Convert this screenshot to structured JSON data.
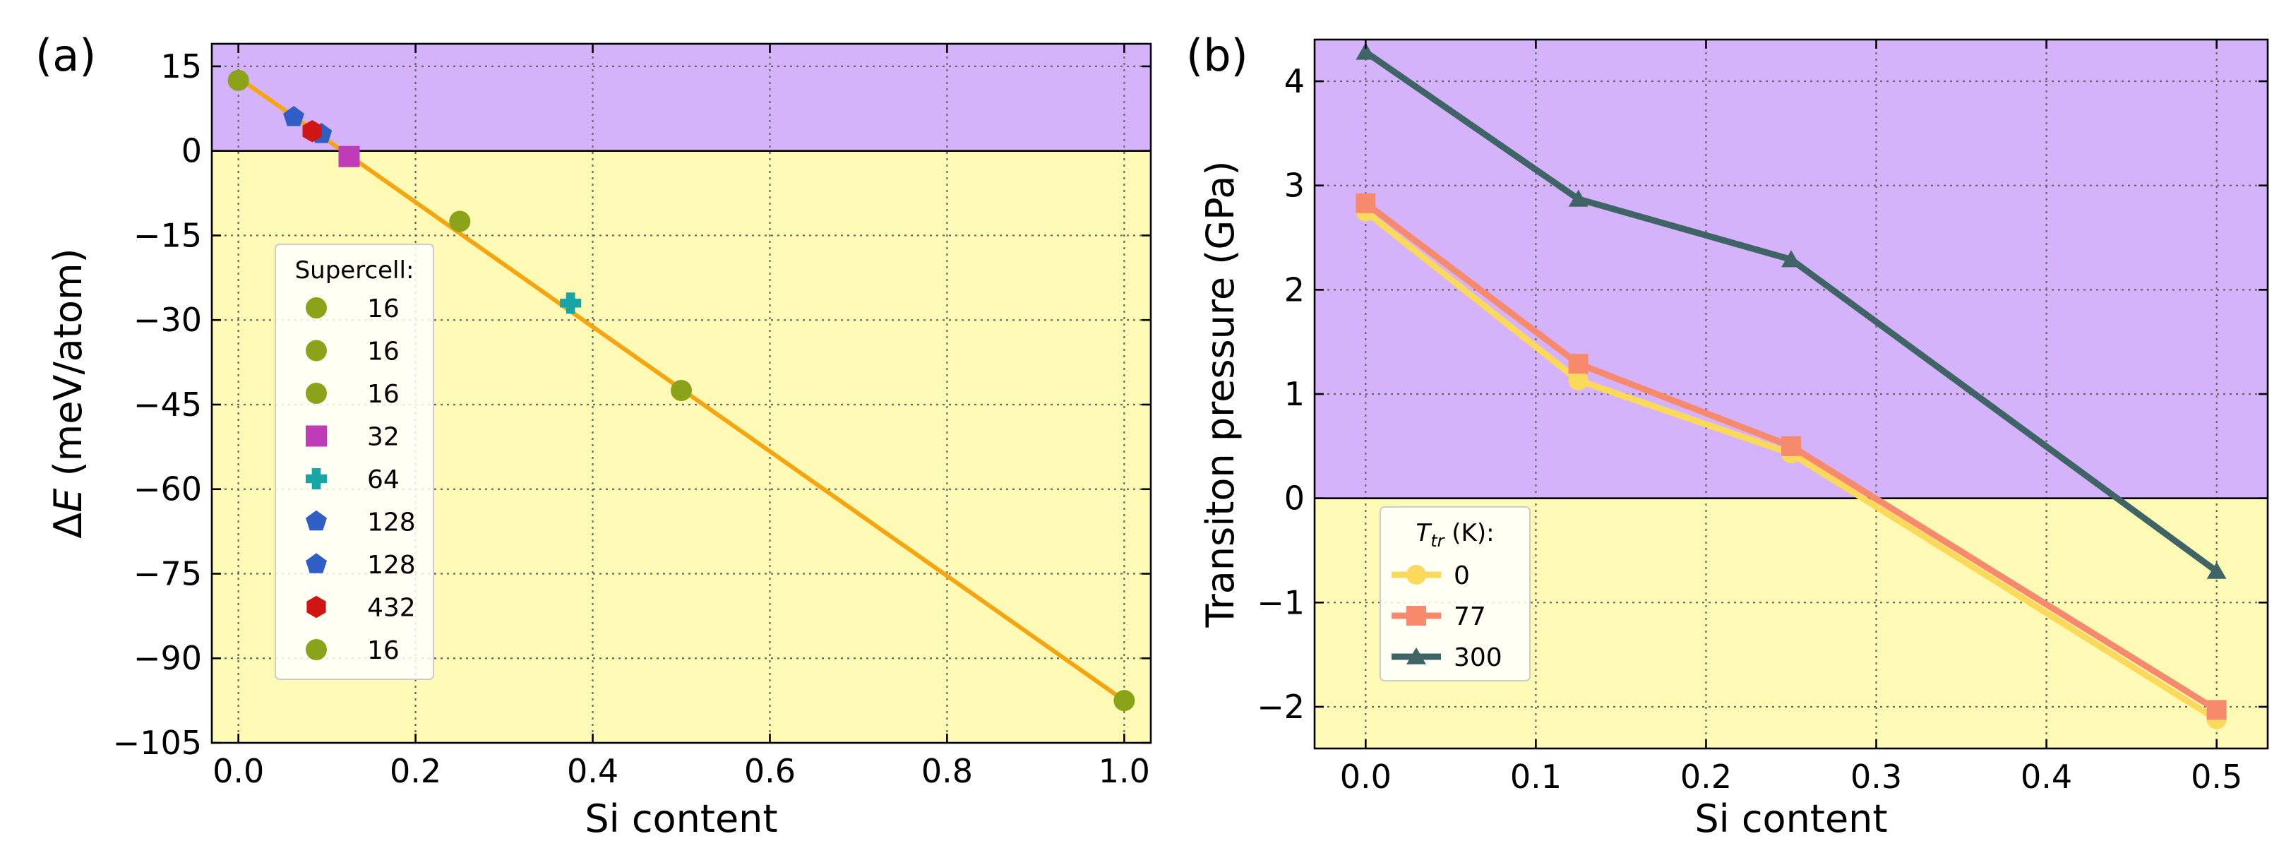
{
  "chart_data": [
    {
      "type": "scatter",
      "panel_label": "(a)",
      "xlabel": "Si content",
      "ylabel_parts": [
        "Δ",
        "E",
        " (meV/atom)"
      ],
      "xlim": [
        -0.03,
        1.03
      ],
      "ylim": [
        -105,
        19
      ],
      "xticks": [
        0.0,
        0.2,
        0.4,
        0.6,
        0.8,
        1.0
      ],
      "xtick_labels": [
        "0.0",
        "0.2",
        "0.4",
        "0.6",
        "0.8",
        "1.0"
      ],
      "yticks": [
        15,
        0,
        -15,
        -30,
        -45,
        -60,
        -75,
        -90,
        -105
      ],
      "ytick_labels": [
        "15",
        "0",
        "−15",
        "−30",
        "−45",
        "−60",
        "−75",
        "−90",
        "−105"
      ],
      "grid": true,
      "regions": [
        {
          "name": "positive",
          "y_range": [
            0,
            19
          ],
          "color": "#d5b3fb"
        },
        {
          "name": "negative",
          "y_range": [
            -105,
            0
          ],
          "color": "#fdfab5"
        }
      ],
      "fit_line": {
        "x": [
          0.0,
          1.0
        ],
        "y": [
          13.0,
          -97.5
        ],
        "color": "#f7a50f"
      },
      "legend": {
        "title": "Supercell:",
        "position": "left-center",
        "entries": [
          {
            "label": "16",
            "marker": "circle",
            "color": "#8aa318"
          },
          {
            "label": "16",
            "marker": "circle",
            "color": "#8aa318"
          },
          {
            "label": "16",
            "marker": "circle",
            "color": "#8aa318"
          },
          {
            "label": "32",
            "marker": "square",
            "color": "#c03bb8"
          },
          {
            "label": "64",
            "marker": "plus",
            "color": "#17a5a5"
          },
          {
            "label": "128",
            "marker": "pentagon",
            "color": "#2f5fc4"
          },
          {
            "label": "128",
            "marker": "pentagon",
            "color": "#2f5fc4"
          },
          {
            "label": "432",
            "marker": "hexagon",
            "color": "#d11515"
          },
          {
            "label": "16",
            "marker": "circle",
            "color": "#8aa318"
          }
        ]
      },
      "points": [
        {
          "x": 0.0,
          "y": 12.5,
          "marker": "circle",
          "color": "#8aa318",
          "supercell": "16"
        },
        {
          "x": 0.0625,
          "y": 6.0,
          "marker": "pentagon",
          "color": "#2f5fc4",
          "supercell": "128"
        },
        {
          "x": 0.0938,
          "y": 3.0,
          "marker": "pentagon",
          "color": "#2f5fc4",
          "supercell": "128"
        },
        {
          "x": 0.0833,
          "y": 3.5,
          "marker": "hexagon",
          "color": "#d11515",
          "supercell": "432"
        },
        {
          "x": 0.125,
          "y": -1.0,
          "marker": "square",
          "color": "#c03bb8",
          "supercell": "32"
        },
        {
          "x": 0.25,
          "y": -12.5,
          "marker": "circle",
          "color": "#8aa318",
          "supercell": "16"
        },
        {
          "x": 0.375,
          "y": -27.0,
          "marker": "plus",
          "color": "#17a5a5",
          "supercell": "64"
        },
        {
          "x": 0.5,
          "y": -42.5,
          "marker": "circle",
          "color": "#8aa318",
          "supercell": "16"
        },
        {
          "x": 1.0,
          "y": -97.5,
          "marker": "circle",
          "color": "#8aa318",
          "supercell": "16"
        }
      ]
    },
    {
      "type": "line",
      "panel_label": "(b)",
      "xlabel": "Si content",
      "ylabel": "Transiton pressure (GPa)",
      "xlim": [
        -0.03,
        0.53
      ],
      "ylim": [
        -2.4,
        4.4
      ],
      "xticks": [
        0.0,
        0.1,
        0.2,
        0.3,
        0.4,
        0.5
      ],
      "xtick_labels": [
        "0.0",
        "0.1",
        "0.2",
        "0.3",
        "0.4",
        "0.5"
      ],
      "yticks": [
        4,
        3,
        2,
        1,
        0,
        -1,
        -2
      ],
      "ytick_labels": [
        "4",
        "3",
        "2",
        "1",
        "0",
        "−1",
        "−2"
      ],
      "grid": true,
      "regions": [
        {
          "name": "positive",
          "y_range": [
            0,
            4.4
          ],
          "color": "#d5b3fb"
        },
        {
          "name": "negative",
          "y_range": [
            -2.4,
            0
          ],
          "color": "#fdfab5"
        }
      ],
      "x": [
        0.0,
        0.125,
        0.25,
        0.5
      ],
      "legend": {
        "title_parts": [
          "T",
          "tr",
          " (K):"
        ],
        "position": "bottom-left"
      },
      "series": [
        {
          "name": "0",
          "values": [
            2.75,
            1.13,
            0.43,
            -2.12
          ],
          "marker": "circle",
          "color": "#fbd95b"
        },
        {
          "name": "77",
          "values": [
            2.83,
            1.29,
            0.5,
            -2.03
          ],
          "marker": "square",
          "color": "#f78a6d"
        },
        {
          "name": "300",
          "values": [
            4.28,
            2.87,
            2.29,
            -0.7
          ],
          "marker": "triangle",
          "color": "#3f6466"
        }
      ]
    }
  ]
}
